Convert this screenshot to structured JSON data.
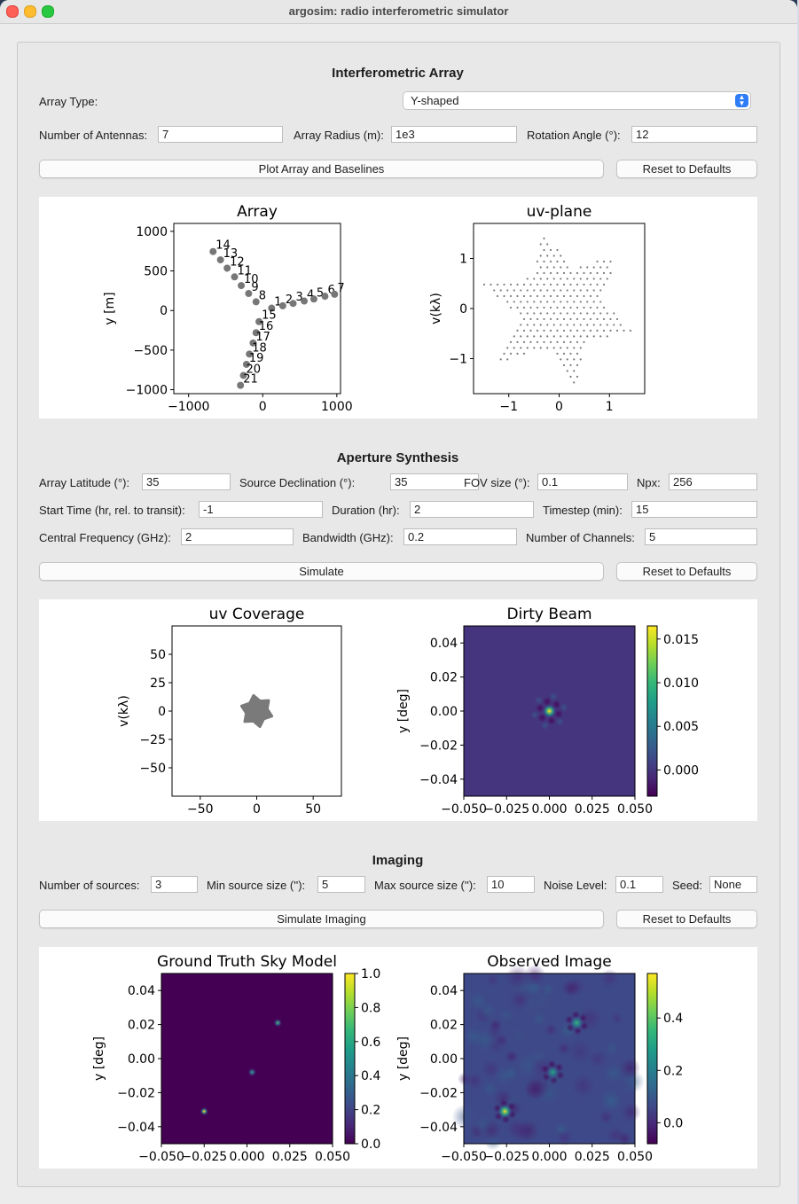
{
  "window": {
    "title": "argosim: radio interferometric simulator"
  },
  "array_section": {
    "heading": "Interferometric Array",
    "array_type_label": "Array Type:",
    "array_type_value": "Y-shaped",
    "num_antennas_label": "Number of Antennas:",
    "num_antennas_value": "7",
    "radius_label": "Array Radius (m):",
    "radius_value": "1e3",
    "rotation_label": "Rotation Angle (°):",
    "rotation_value": "12",
    "plot_button": "Plot Array and Baselines",
    "reset_button": "Reset to Defaults"
  },
  "aperture_section": {
    "heading": "Aperture Synthesis",
    "latitude_label": "Array Latitude (°):",
    "latitude_value": "35",
    "declination_label": "Source Declination (°):",
    "declination_value": "35",
    "fov_label": "FOV size (°):",
    "fov_value": "0.1",
    "npx_label": "Npx:",
    "npx_value": "256",
    "start_time_label": "Start Time (hr, rel. to transit):",
    "start_time_value": "-1",
    "duration_label": "Duration (hr):",
    "duration_value": "2",
    "timestep_label": "Timestep (min):",
    "timestep_value": "15",
    "freq_label": "Central Frequency (GHz):",
    "freq_value": "2",
    "bandwidth_label": "Bandwidth (GHz):",
    "bandwidth_value": "0.2",
    "channels_label": "Number of Channels:",
    "channels_value": "5",
    "simulate_button": "Simulate",
    "reset_button": "Reset to Defaults"
  },
  "imaging_section": {
    "heading": "Imaging",
    "num_sources_label": "Number of sources:",
    "num_sources_value": "3",
    "min_size_label": "Min source size (''):",
    "min_size_value": "5",
    "max_size_label": "Max source size (''):",
    "max_size_value": "10",
    "noise_label": "Noise Level:",
    "noise_value": "0.1",
    "seed_label": "Seed:",
    "seed_value": "None",
    "simulate_button": "Simulate Imaging",
    "reset_button": "Reset to Defaults"
  },
  "colors": {
    "marker": "#777777",
    "viridis_dark": "#440154",
    "viridis_bg": "#472d7b",
    "viridis_mid": "#21918c",
    "viridis_light": "#fde725"
  },
  "chart_data": [
    {
      "type": "scatter",
      "title": "Array",
      "xlabel": "",
      "ylabel": "y [m]",
      "xlim": [
        -1200,
        1050
      ],
      "ylim": [
        -1050,
        1100
      ],
      "xticks": [
        "−1000",
        "0",
        "1000"
      ],
      "yticks": [
        "1000",
        "500",
        "0",
        "−500",
        "−1000"
      ],
      "xtick_values": [
        -1000,
        0,
        1000
      ],
      "ytick_values": [
        1000,
        500,
        0,
        -500,
        -1000
      ],
      "points": [
        {
          "label": "1",
          "x": 120,
          "y": 30
        },
        {
          "label": "2",
          "x": 270,
          "y": 60
        },
        {
          "label": "3",
          "x": 410,
          "y": 90
        },
        {
          "label": "4",
          "x": 560,
          "y": 120
        },
        {
          "label": "5",
          "x": 690,
          "y": 145
        },
        {
          "label": "6",
          "x": 840,
          "y": 180
        },
        {
          "label": "7",
          "x": 970,
          "y": 205
        },
        {
          "label": "8",
          "x": -90,
          "y": 110
        },
        {
          "label": "9",
          "x": -190,
          "y": 215
        },
        {
          "label": "10",
          "x": -290,
          "y": 315
        },
        {
          "label": "11",
          "x": -380,
          "y": 425
        },
        {
          "label": "12",
          "x": -480,
          "y": 535
        },
        {
          "label": "13",
          "x": -570,
          "y": 640
        },
        {
          "label": "14",
          "x": -670,
          "y": 745
        },
        {
          "label": "15",
          "x": -50,
          "y": -140
        },
        {
          "label": "16",
          "x": -90,
          "y": -280
        },
        {
          "label": "17",
          "x": -130,
          "y": -410
        },
        {
          "label": "18",
          "x": -180,
          "y": -550
        },
        {
          "label": "19",
          "x": -220,
          "y": -680
        },
        {
          "label": "20",
          "x": -260,
          "y": -820
        },
        {
          "label": "21",
          "x": -300,
          "y": -945
        }
      ]
    },
    {
      "type": "scatter",
      "title": "uv-plane",
      "xlabel": "",
      "ylabel": "v(kλ)",
      "xlim": [
        -1.7,
        1.7
      ],
      "ylim": [
        -1.7,
        1.7
      ],
      "xticks": [
        "−1",
        "0",
        "1"
      ],
      "yticks": [
        "1",
        "0",
        "−1"
      ],
      "xtick_values": [
        -1,
        0,
        1
      ],
      "ytick_values": [
        1,
        0,
        -1
      ],
      "description_series": "6-pointed star of baseline samples"
    },
    {
      "type": "scatter",
      "title": "uv Coverage",
      "xlabel": "",
      "ylabel": "v(kλ)",
      "xlim": [
        -75,
        75
      ],
      "ylim": [
        -75,
        75
      ],
      "xticks": [
        "−50",
        "0",
        "50"
      ],
      "yticks": [
        "50",
        "25",
        "0",
        "−25",
        "−50"
      ],
      "xtick_values": [
        -50,
        0,
        50
      ],
      "ytick_values": [
        50,
        25,
        0,
        -25,
        -50
      ]
    },
    {
      "type": "heatmap",
      "title": "Dirty Beam",
      "xlabel": "",
      "ylabel": "y [deg]",
      "xlim": [
        -0.05,
        0.05
      ],
      "ylim": [
        -0.05,
        0.05
      ],
      "xticks": [
        "−0.050",
        "−0.025",
        "0.000",
        "0.025",
        "0.050"
      ],
      "yticks": [
        "0.04",
        "0.02",
        "0.00",
        "−0.02",
        "−0.04"
      ],
      "xtick_values": [
        -0.05,
        -0.025,
        0,
        0.025,
        0.05
      ],
      "ytick_values": [
        0.04,
        0.02,
        0,
        -0.02,
        -0.04
      ],
      "colorbar_range": [
        -0.003,
        0.0165
      ],
      "colorbar_ticks": [
        "0.015",
        "0.010",
        "0.005",
        "0.000"
      ],
      "colorbar_tick_values": [
        0.015,
        0.01,
        0.005,
        0.0
      ],
      "peaks": [
        {
          "x": 0.0,
          "y": 0.0,
          "v": 0.0165
        }
      ]
    },
    {
      "type": "heatmap",
      "title": "Ground Truth Sky Model",
      "xlabel": "",
      "ylabel": "y [deg]",
      "xlim": [
        -0.05,
        0.05
      ],
      "ylim": [
        -0.05,
        0.05
      ],
      "xticks": [
        "−0.050",
        "−0.025",
        "0.000",
        "0.025",
        "0.050"
      ],
      "yticks": [
        "0.04",
        "0.02",
        "0.00",
        "−0.02",
        "−0.04"
      ],
      "xtick_values": [
        -0.05,
        -0.025,
        0,
        0.025,
        0.05
      ],
      "ytick_values": [
        0.04,
        0.02,
        0,
        -0.02,
        -0.04
      ],
      "colorbar_range": [
        0.0,
        1.0
      ],
      "colorbar_ticks": [
        "1.0",
        "0.8",
        "0.6",
        "0.4",
        "0.2",
        "0.0"
      ],
      "colorbar_tick_values": [
        1.0,
        0.8,
        0.6,
        0.4,
        0.2,
        0.0
      ],
      "peaks": [
        {
          "x": 0.018,
          "y": 0.021,
          "v": 0.7
        },
        {
          "x": 0.003,
          "y": -0.008,
          "v": 0.6
        },
        {
          "x": -0.025,
          "y": -0.031,
          "v": 1.0
        }
      ]
    },
    {
      "type": "heatmap",
      "title": "Observed Image",
      "xlabel": "",
      "ylabel": "y [deg]",
      "xlim": [
        -0.05,
        0.05
      ],
      "ylim": [
        -0.05,
        0.05
      ],
      "xticks": [
        "−0.050",
        "−0.025",
        "0.000",
        "0.025",
        "0.050"
      ],
      "yticks": [
        "0.04",
        "0.02",
        "0.00",
        "−0.02",
        "−0.04"
      ],
      "xtick_values": [
        -0.05,
        -0.025,
        0,
        0.025,
        0.05
      ],
      "ytick_values": [
        0.04,
        0.02,
        0,
        -0.02,
        -0.04
      ],
      "colorbar_range": [
        -0.08,
        0.57
      ],
      "colorbar_ticks": [
        "0.4",
        "0.2",
        "0.0"
      ],
      "colorbar_tick_values": [
        0.4,
        0.2,
        0.0
      ],
      "peaks": [
        {
          "x": 0.016,
          "y": 0.021,
          "v": 0.35
        },
        {
          "x": 0.002,
          "y": -0.008,
          "v": 0.3
        },
        {
          "x": -0.026,
          "y": -0.031,
          "v": 0.55
        }
      ]
    }
  ]
}
